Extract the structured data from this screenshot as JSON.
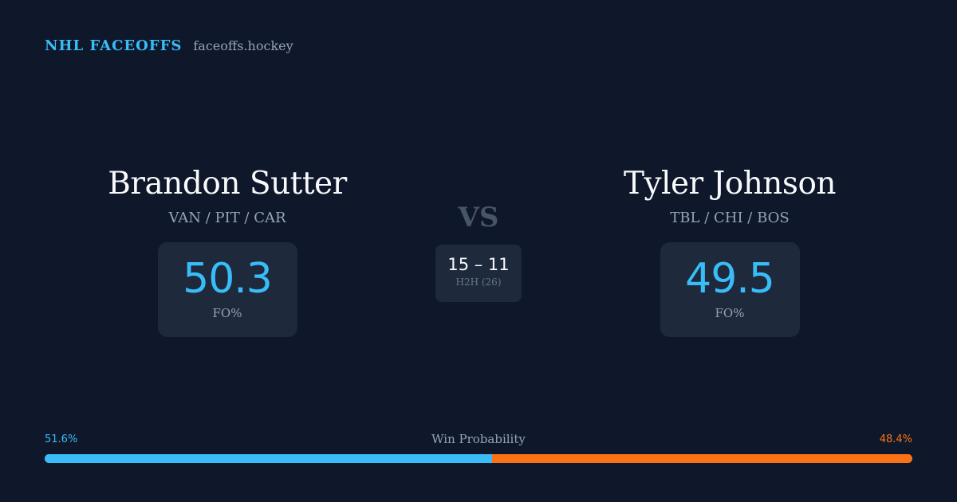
{
  "brand": {
    "name": "NHL FACEOFFS",
    "site": "faceoffs.hockey"
  },
  "matchup": {
    "left": {
      "name": "Brandon Sutter",
      "teams": "VAN / PIT / CAR",
      "fo_pct": "50.3",
      "fo_label": "FO%"
    },
    "vs_label": "VS",
    "head_to_head": {
      "score": "15 – 11",
      "label": "H2H (26)"
    },
    "right": {
      "name": "Tyler Johnson",
      "teams": "TBL / CHI / BOS",
      "fo_pct": "49.5",
      "fo_label": "FO%"
    }
  },
  "win_probability": {
    "title": "Win Probability",
    "left_label": "51.6%",
    "right_label": "48.4%",
    "left_value": 51.6,
    "right_value": 48.4
  },
  "colors": {
    "background": "#0f172a",
    "card": "#1e293b",
    "accent_left": "#38bdf8",
    "accent_right": "#f97316",
    "muted": "#94a3b8"
  }
}
